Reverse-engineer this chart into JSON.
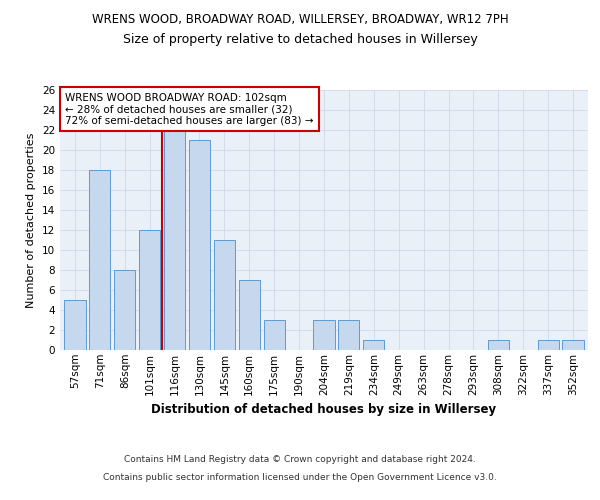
{
  "title1": "WRENS WOOD, BROADWAY ROAD, WILLERSEY, BROADWAY, WR12 7PH",
  "title2": "Size of property relative to detached houses in Willersey",
  "xlabel": "Distribution of detached houses by size in Willersey",
  "ylabel": "Number of detached properties",
  "categories": [
    "57sqm",
    "71sqm",
    "86sqm",
    "101sqm",
    "116sqm",
    "130sqm",
    "145sqm",
    "160sqm",
    "175sqm",
    "190sqm",
    "204sqm",
    "219sqm",
    "234sqm",
    "249sqm",
    "263sqm",
    "278sqm",
    "293sqm",
    "308sqm",
    "322sqm",
    "337sqm",
    "352sqm"
  ],
  "values": [
    5,
    18,
    8,
    12,
    22,
    21,
    11,
    7,
    3,
    0,
    3,
    3,
    1,
    0,
    0,
    0,
    0,
    1,
    0,
    1,
    1
  ],
  "bar_color": "#c5d8ed",
  "bar_edge_color": "#5b9bd5",
  "vline_x": 3.5,
  "vline_color": "#cc0000",
  "annotation_text": "WRENS WOOD BROADWAY ROAD: 102sqm\n← 28% of detached houses are smaller (32)\n72% of semi-detached houses are larger (83) →",
  "annotation_box_color": "white",
  "annotation_box_edge": "#cc0000",
  "ylim": [
    0,
    26
  ],
  "yticks": [
    0,
    2,
    4,
    6,
    8,
    10,
    12,
    14,
    16,
    18,
    20,
    22,
    24,
    26
  ],
  "grid_color": "#d0d8e8",
  "background_color": "#eaf0f8",
  "footer1": "Contains HM Land Registry data © Crown copyright and database right 2024.",
  "footer2": "Contains public sector information licensed under the Open Government Licence v3.0.",
  "title1_fontsize": 8.5,
  "title2_fontsize": 9,
  "xlabel_fontsize": 8.5,
  "ylabel_fontsize": 8,
  "tick_fontsize": 7.5,
  "footer_fontsize": 6.5,
  "annotation_fontsize": 7.5
}
